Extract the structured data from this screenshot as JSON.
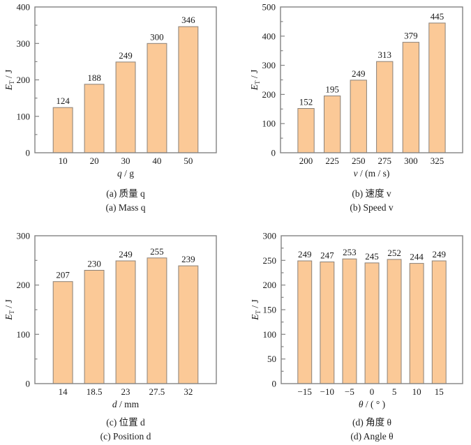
{
  "figure": {
    "background": "#ffffff",
    "text_color": "#1a1a1a",
    "axis_color": "#828282",
    "bar_fill": "#FBC997",
    "bar_edge": "#8a8178"
  },
  "chart_data": [
    {
      "id": "a",
      "type": "bar",
      "categories": [
        "10",
        "20",
        "30",
        "40",
        "50"
      ],
      "values": [
        124,
        188,
        249,
        300,
        346
      ],
      "ylabel": {
        "var": "E",
        "sub": "T",
        "rest": " / J"
      },
      "xlabel": {
        "var": "q",
        "rest": " / g"
      },
      "ylim": [
        0,
        400
      ],
      "ytick_major": 100,
      "ytick_minor": 50,
      "grid": false,
      "caption_zh": "(a) 质量 q",
      "caption_en": "(a) Mass q"
    },
    {
      "id": "b",
      "type": "bar",
      "categories": [
        "200",
        "225",
        "250",
        "275",
        "300",
        "325"
      ],
      "values": [
        152,
        195,
        249,
        313,
        379,
        445
      ],
      "ylabel": {
        "var": "E",
        "sub": "T",
        "rest": " / J"
      },
      "xlabel": {
        "var": "v",
        "rest": " / (m / s)"
      },
      "ylim": [
        0,
        500
      ],
      "ytick_major": 100,
      "ytick_minor": 50,
      "grid": false,
      "caption_zh": "(b) 速度 v",
      "caption_en": "(b) Speed v"
    },
    {
      "id": "c",
      "type": "bar",
      "categories": [
        "14",
        "18.5",
        "23",
        "27.5",
        "32"
      ],
      "values": [
        207,
        230,
        249,
        255,
        239
      ],
      "ylabel": {
        "var": "E",
        "sub": "T",
        "rest": " / J"
      },
      "xlabel": {
        "var": "d",
        "rest": " / mm"
      },
      "ylim": [
        0,
        300
      ],
      "ytick_major": 100,
      "ytick_minor": 50,
      "grid": false,
      "caption_zh": "(c) 位置 d",
      "caption_en": "(c) Position d"
    },
    {
      "id": "d",
      "type": "bar",
      "categories": [
        "−15",
        "−10",
        "−5",
        "0",
        "5",
        "10",
        "15"
      ],
      "values": [
        249,
        247,
        253,
        245,
        252,
        244,
        249
      ],
      "ylabel": {
        "var": "E",
        "sub": "T",
        "rest": " / J"
      },
      "xlabel": {
        "var": "θ",
        "rest": " / ( ° )"
      },
      "ylim": [
        0,
        300
      ],
      "ytick_major": 50,
      "ytick_minor": 25,
      "grid": false,
      "caption_zh": "(d) 角度 θ",
      "caption_en": "(d) Angle θ"
    }
  ]
}
